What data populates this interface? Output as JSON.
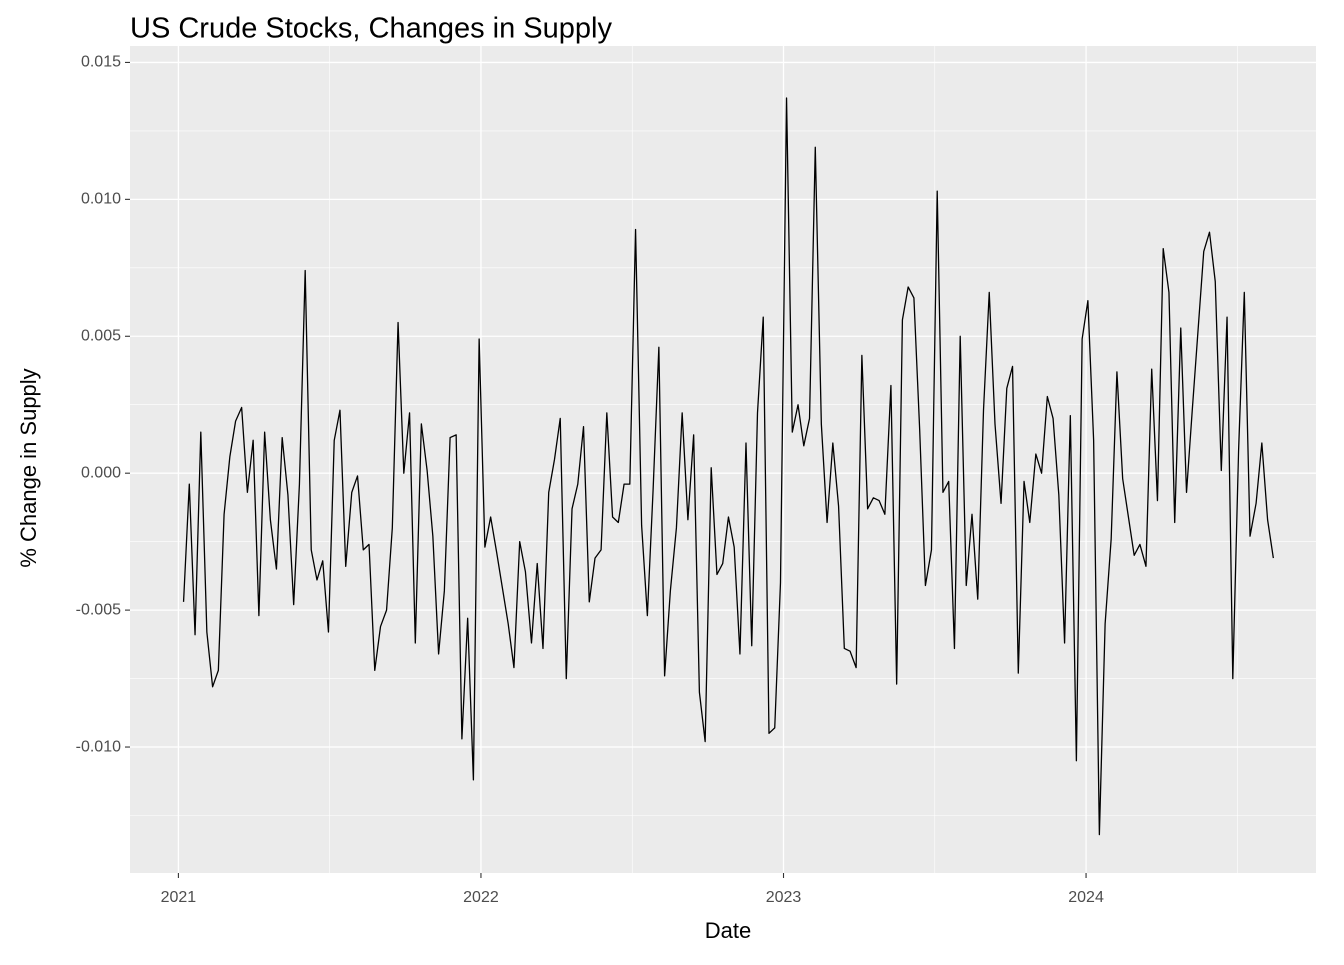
{
  "chart_data": {
    "type": "line",
    "title": "US Crude Stocks, Changes in Supply",
    "xlabel": "Date",
    "ylabel": "% Change in Supply",
    "color": "#000000",
    "grid": true,
    "xlim": [
      2020.84,
      2024.76
    ],
    "ylim": [
      -0.0146,
      0.0156
    ],
    "xticks": [
      2021,
      2022,
      2023,
      2024
    ],
    "yticks": [
      {
        "value": -0.01,
        "label": "-0.010"
      },
      -0.005,
      {
        "value": 0,
        "label": "0.000"
      },
      0.005,
      {
        "value": 0.01,
        "label": "0.010"
      },
      0.015
    ],
    "x": [
      2021.017,
      2021.036,
      2021.055,
      2021.074,
      2021.094,
      2021.113,
      2021.132,
      2021.151,
      2021.17,
      2021.189,
      2021.209,
      2021.228,
      2021.247,
      2021.266,
      2021.285,
      2021.304,
      2021.324,
      2021.343,
      2021.362,
      2021.381,
      2021.4,
      2021.419,
      2021.439,
      2021.458,
      2021.477,
      2021.496,
      2021.515,
      2021.534,
      2021.553,
      2021.573,
      2021.592,
      2021.611,
      2021.63,
      2021.649,
      2021.668,
      2021.688,
      2021.707,
      2021.726,
      2021.745,
      2021.764,
      2021.783,
      2021.803,
      2021.822,
      2021.841,
      2021.86,
      2021.879,
      2021.898,
      2021.918,
      2021.937,
      2021.956,
      2021.975,
      2021.994,
      2022.013,
      2022.032,
      2022.052,
      2022.071,
      2022.09,
      2022.109,
      2022.128,
      2022.147,
      2022.167,
      2022.186,
      2022.205,
      2022.224,
      2022.243,
      2022.262,
      2022.282,
      2022.301,
      2022.32,
      2022.339,
      2022.358,
      2022.377,
      2022.397,
      2022.416,
      2022.435,
      2022.454,
      2022.473,
      2022.492,
      2022.511,
      2022.531,
      2022.55,
      2022.569,
      2022.588,
      2022.607,
      2022.626,
      2022.646,
      2022.665,
      2022.684,
      2022.703,
      2022.722,
      2022.741,
      2022.761,
      2022.78,
      2022.799,
      2022.818,
      2022.837,
      2022.856,
      2022.876,
      2022.895,
      2022.914,
      2022.933,
      2022.952,
      2022.971,
      2022.99,
      2023.01,
      2023.029,
      2023.048,
      2023.067,
      2023.086,
      2023.105,
      2023.125,
      2023.144,
      2023.163,
      2023.182,
      2023.201,
      2023.22,
      2023.24,
      2023.259,
      2023.278,
      2023.297,
      2023.316,
      2023.335,
      2023.355,
      2023.374,
      2023.393,
      2023.412,
      2023.431,
      2023.45,
      2023.469,
      2023.489,
      2023.508,
      2023.527,
      2023.546,
      2023.565,
      2023.584,
      2023.604,
      2023.623,
      2023.642,
      2023.661,
      2023.68,
      2023.699,
      2023.719,
      2023.738,
      2023.757,
      2023.776,
      2023.795,
      2023.814,
      2023.834,
      2023.853,
      2023.872,
      2023.891,
      2023.91,
      2023.929,
      2023.948,
      2023.968,
      2023.987,
      2024.006,
      2024.025,
      2024.044,
      2024.063,
      2024.083,
      2024.102,
      2024.121,
      2024.14,
      2024.159,
      2024.178,
      2024.198,
      2024.217,
      2024.236,
      2024.255,
      2024.274,
      2024.293,
      2024.313,
      2024.332,
      2024.351,
      2024.37,
      2024.389,
      2024.408,
      2024.427,
      2024.447,
      2024.466,
      2024.485,
      2024.504,
      2024.523,
      2024.542,
      2024.562,
      2024.581,
      2024.6,
      2024.619
    ],
    "values": [
      -0.0047,
      -0.0004,
      -0.0059,
      0.0015,
      -0.0058,
      -0.0078,
      -0.0072,
      -0.0015,
      0.0006,
      0.0019,
      0.0024,
      -0.0007,
      0.0012,
      -0.0052,
      0.0015,
      -0.0017,
      -0.0035,
      0.0013,
      -0.0008,
      -0.0048,
      -0.0004,
      0.0074,
      -0.0028,
      -0.0039,
      -0.0032,
      -0.0058,
      0.0012,
      0.0023,
      -0.0034,
      -0.0007,
      -0.0001,
      -0.0028,
      -0.0026,
      -0.0072,
      -0.0056,
      -0.005,
      -0.002,
      0.0055,
      0.0,
      0.0022,
      -0.0062,
      0.0018,
      0.0001,
      -0.0023,
      -0.0066,
      -0.0043,
      0.0013,
      0.0014,
      -0.0097,
      -0.0053,
      -0.0112,
      0.0049,
      -0.0027,
      -0.0016,
      -0.0029,
      -0.0042,
      -0.0055,
      -0.0071,
      -0.0025,
      -0.0036,
      -0.0062,
      -0.0033,
      -0.0064,
      -0.0007,
      0.0005,
      0.002,
      -0.0075,
      -0.0013,
      -0.0004,
      0.0017,
      -0.0047,
      -0.0031,
      -0.0028,
      0.0022,
      -0.0016,
      -0.0018,
      -0.0004,
      -0.0004,
      0.0089,
      -0.0019,
      -0.0052,
      -0.0006,
      0.0046,
      -0.0074,
      -0.0043,
      -0.002,
      0.0022,
      -0.0017,
      0.0014,
      -0.008,
      -0.0098,
      0.0002,
      -0.0037,
      -0.0033,
      -0.0016,
      -0.0027,
      -0.0066,
      0.0011,
      -0.0063,
      0.0022,
      0.0057,
      -0.0095,
      -0.0093,
      -0.004,
      0.0137,
      0.0015,
      0.0025,
      0.001,
      0.002,
      0.0119,
      0.0018,
      -0.0018,
      0.0011,
      -0.0012,
      -0.0064,
      -0.0065,
      -0.0071,
      0.0043,
      -0.0013,
      -0.0009,
      -0.001,
      -0.0015,
      0.0032,
      -0.0077,
      0.0056,
      0.0068,
      0.0064,
      0.0016,
      -0.0041,
      -0.0028,
      0.0103,
      -0.0007,
      -0.0003,
      -0.0064,
      0.005,
      -0.0041,
      -0.0015,
      -0.0046,
      0.0023,
      0.0066,
      0.0018,
      -0.0011,
      0.0031,
      0.0039,
      -0.0073,
      -0.0003,
      -0.0018,
      0.0007,
      0.0,
      0.0028,
      0.002,
      -0.0008,
      -0.0062,
      0.0021,
      -0.0105,
      0.0049,
      0.0063,
      0.0012,
      -0.0132,
      -0.0055,
      -0.0024,
      0.0037,
      -0.0002,
      -0.0016,
      -0.003,
      -0.0026,
      -0.0034,
      0.0038,
      -0.001,
      0.0082,
      0.0066,
      -0.0018,
      0.0053,
      -0.0007,
      0.0023,
      0.0052,
      0.0081,
      0.0088,
      0.007,
      0.0001,
      0.0057,
      -0.0075,
      0.0008,
      0.0066,
      -0.0023,
      -0.0011,
      0.0011,
      -0.0017,
      -0.0031
    ]
  }
}
